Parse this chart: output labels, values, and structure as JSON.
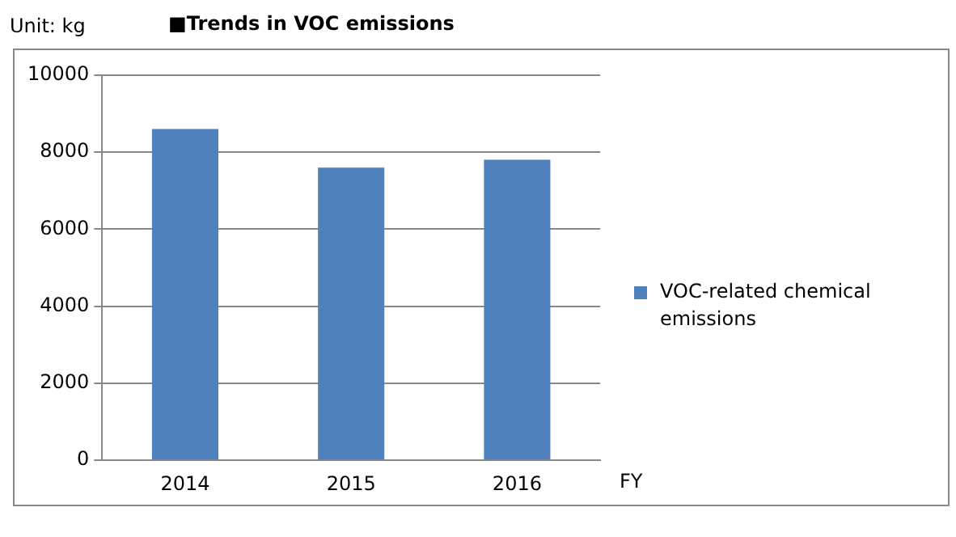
{
  "chart_data": {
    "type": "bar",
    "title": "■Trends in VOC emissions",
    "ylabel": "Unit: kg",
    "xlabel": "FY",
    "categories": [
      "2014",
      "2015",
      "2016"
    ],
    "series": [
      {
        "name": "VOC-related chemical emissions",
        "color": "#4f81bd",
        "values": [
          8600,
          7600,
          7800
        ]
      }
    ],
    "ylim": [
      0,
      10000
    ],
    "yticks": [
      0,
      2000,
      4000,
      6000,
      8000,
      10000
    ],
    "grid": "y",
    "legend": "right"
  }
}
